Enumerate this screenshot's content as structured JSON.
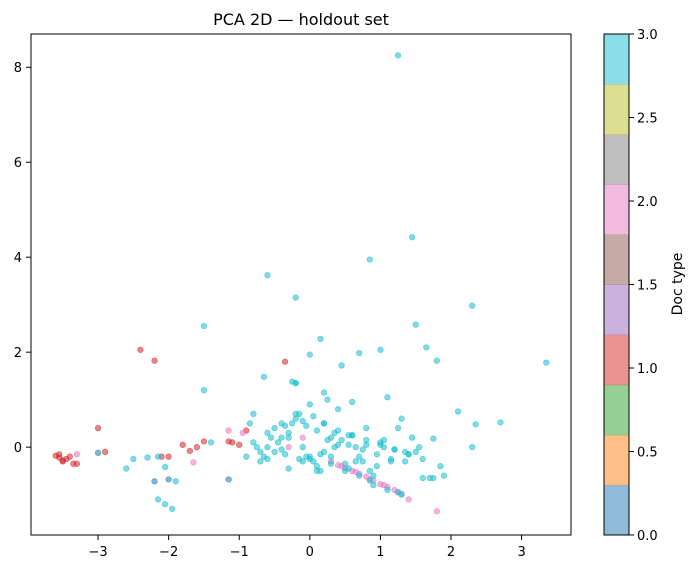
{
  "chart_data": {
    "type": "scatter",
    "title": "PCA 2D — holdout set",
    "xlabel": "",
    "ylabel": "",
    "xlim": [
      -3.95,
      3.7
    ],
    "ylim": [
      -1.85,
      8.7
    ],
    "xticks": [
      -3,
      -2,
      -1,
      0,
      1,
      2,
      3
    ],
    "xtick_labels": [
      "−3",
      "−2",
      "−1",
      "0",
      "1",
      "2",
      "3"
    ],
    "yticks": [
      0,
      2,
      4,
      6,
      8
    ],
    "ytick_labels": [
      "0",
      "2",
      "4",
      "6",
      "8"
    ],
    "grid": false,
    "colorbar": {
      "label": "Doc type",
      "range": [
        0,
        3
      ],
      "ticks": [
        0,
        0.5,
        1,
        1.5,
        2,
        2.5,
        3
      ],
      "tick_labels": [
        "0.0",
        "0.5",
        "1.0",
        "1.5",
        "2.0",
        "2.5",
        "3.0"
      ],
      "colors": [
        "#1f77b4",
        "#ff7f0e",
        "#2ca02c",
        "#d62728",
        "#9467bd",
        "#8c564b",
        "#e377c2",
        "#7f7f7f",
        "#bcbd22",
        "#17becf"
      ]
    },
    "series": [
      {
        "name": "Doc type 0",
        "doc_type": 0,
        "x": [
          -1.15,
          -2.0,
          -2.2,
          -3.0
        ],
        "y": [
          -0.68,
          -0.68,
          -0.72,
          -0.12
        ]
      },
      {
        "name": "Doc type 1",
        "doc_type": 1,
        "x": [
          -3.6,
          -3.55,
          -3.5,
          -3.45,
          -3.4,
          -3.35,
          -3.3,
          -3.55,
          -3.5,
          -2.4,
          -2.2,
          -2.1,
          -2.0,
          -1.8,
          -1.7,
          -1.5,
          -1.6,
          -1.15,
          -1.1,
          -1.0,
          -0.9,
          -0.35,
          -3.0,
          -2.9
        ],
        "y": [
          -0.18,
          -0.22,
          -0.28,
          -0.25,
          -0.2,
          -0.35,
          -0.35,
          -0.15,
          -0.3,
          2.05,
          1.82,
          -0.2,
          -0.2,
          0.05,
          -0.08,
          0.12,
          0.0,
          0.12,
          0.1,
          0.05,
          0.35,
          1.8,
          0.4,
          -0.1
        ]
      },
      {
        "name": "Doc type 2",
        "doc_type": 2,
        "x": [
          -3.3,
          -1.65,
          -1.15,
          -0.95,
          0.3,
          0.4,
          0.5,
          0.6,
          0.7,
          0.8,
          0.9,
          1.0,
          1.1,
          1.2,
          1.3,
          1.4,
          1.8,
          0.45,
          0.65,
          0.85,
          1.05,
          1.25,
          -0.3,
          -0.1
        ],
        "y": [
          -0.15,
          -0.32,
          0.35,
          0.3,
          -0.3,
          -0.38,
          -0.44,
          -0.5,
          -0.56,
          -0.62,
          -0.7,
          -0.78,
          -0.84,
          -0.9,
          -0.98,
          -1.1,
          -1.35,
          -0.4,
          -0.52,
          -0.68,
          -0.8,
          -0.95,
          0.0,
          0.2
        ]
      },
      {
        "name": "Doc type 3",
        "doc_type": 3,
        "x": [
          1.25,
          1.45,
          0.85,
          -0.6,
          -0.2,
          1.5,
          2.3,
          -1.5,
          0.15,
          0.7,
          1.0,
          1.65,
          1.8,
          3.35,
          -0.65,
          -0.25,
          -0.2,
          -1.5,
          0.0,
          0.45,
          1.1,
          2.1,
          2.7,
          2.35,
          -2.6,
          -2.5,
          -2.3,
          -2.15,
          -2.05,
          -1.95,
          -2.15,
          -2.05,
          -1.9,
          -1.4,
          -0.85,
          -0.8,
          -0.75,
          -0.7,
          -0.65,
          -0.6,
          -0.55,
          -0.5,
          -0.45,
          -0.4,
          -0.35,
          -0.3,
          -0.25,
          -0.2,
          -0.15,
          -0.1,
          -0.05,
          0.0,
          0.05,
          0.1,
          0.15,
          0.2,
          0.25,
          0.3,
          0.35,
          0.4,
          0.45,
          0.5,
          0.55,
          0.6,
          0.65,
          0.7,
          0.75,
          0.8,
          0.85,
          0.9,
          0.95,
          1.05,
          1.15,
          1.25,
          1.35,
          1.45,
          -0.9,
          -0.7,
          -0.5,
          -0.3,
          -0.1,
          0.1,
          0.3,
          0.5,
          0.7,
          0.9,
          1.1,
          1.3,
          1.5,
          1.7,
          1.9,
          -0.8,
          -0.6,
          -0.4,
          -0.2,
          0.0,
          0.2,
          0.4,
          0.6,
          0.8,
          1.0,
          1.2,
          1.4,
          1.6,
          0.0,
          0.15,
          -0.15,
          0.3,
          -0.3,
          0.1,
          0.2,
          -0.05,
          0.55,
          0.75,
          0.95,
          1.15,
          1.35,
          1.55,
          1.75,
          0.35,
          0.65,
          0.85,
          1.25,
          1.6,
          1.75,
          1.85,
          2.3,
          0.05,
          -0.1,
          0.2,
          -0.2,
          0.4,
          0.6,
          -0.4,
          -0.6,
          0.8,
          1.0,
          1.2,
          1.4,
          1.05,
          0.25,
          0.55,
          -0.35,
          1.3
        ],
        "y": [
          8.25,
          4.42,
          3.95,
          3.62,
          3.15,
          2.58,
          2.98,
          2.55,
          2.28,
          1.98,
          2.05,
          2.1,
          1.82,
          1.78,
          1.48,
          1.38,
          1.35,
          1.2,
          1.95,
          1.72,
          1.05,
          0.75,
          0.52,
          0.48,
          -0.45,
          -0.25,
          -0.22,
          -0.2,
          -0.42,
          -1.3,
          -1.1,
          -1.2,
          -0.72,
          0.1,
          0.5,
          0.7,
          0.0,
          -0.1,
          -0.2,
          -0.25,
          0.2,
          0.4,
          0.1,
          -0.05,
          -0.15,
          0.3,
          0.5,
          0.6,
          0.7,
          0.0,
          -0.2,
          -0.25,
          -0.3,
          -0.4,
          -0.5,
          -0.1,
          0.15,
          0.2,
          0.3,
          0.05,
          0.15,
          -0.35,
          -0.45,
          0.25,
          0.0,
          -0.2,
          -0.3,
          0.4,
          -0.5,
          -0.6,
          -0.4,
          0.15,
          -0.3,
          0.4,
          -0.1,
          0.2,
          -0.2,
          -0.3,
          -0.1,
          0.2,
          -0.3,
          -0.5,
          -0.2,
          -0.5,
          -0.6,
          -0.8,
          -0.9,
          -1.0,
          -0.1,
          -0.65,
          -0.6,
          0.1,
          0.3,
          0.5,
          0.7,
          0.9,
          0.5,
          0.35,
          0.25,
          0.15,
          0.05,
          -0.05,
          -0.15,
          -0.25,
          -0.2,
          -0.15,
          -0.25,
          -0.35,
          -0.45,
          0.35,
          0.5,
          0.45,
          0.05,
          -0.05,
          -0.15,
          -0.25,
          -0.3,
          0.0,
          -0.65,
          0.0,
          -0.3,
          -0.7,
          -0.95,
          -0.65,
          0.18,
          -0.4,
          0.0,
          0.65,
          0.55,
          1.15,
          1.35,
          0.8,
          0.95,
          0.2,
          0.0,
          0.05,
          0.1,
          -0.05,
          -0.15,
          0.0,
          1.0,
          0.25,
          0.45,
          0.6
        ]
      }
    ]
  }
}
